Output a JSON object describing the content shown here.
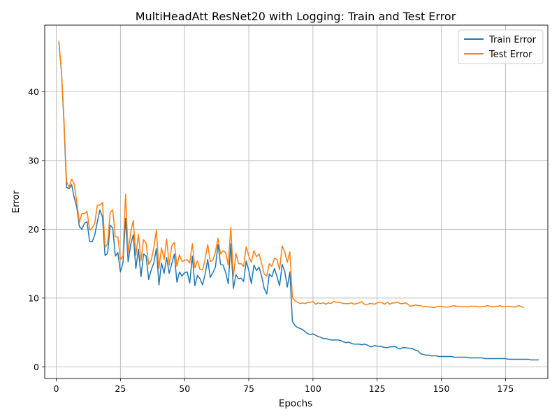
{
  "chart_data": {
    "type": "line",
    "title": "MultiHeadAtt ResNet20 with Logging: Train and Test Error",
    "xlabel": "Epochs",
    "ylabel": "Error",
    "xlim": [
      -4.5,
      191.5
    ],
    "ylim": [
      -1.7,
      49.7
    ],
    "xticks": [
      0,
      25,
      50,
      75,
      100,
      125,
      150,
      175
    ],
    "yticks": [
      0,
      10,
      20,
      30,
      40
    ],
    "grid": true,
    "legend_position": "top-right",
    "colors": {
      "train": "#1f77b4",
      "test": "#ff7f0e"
    },
    "series": [
      {
        "name": "Train Error",
        "color": "#1f77b4",
        "x_start": 1,
        "values": [
          47.3,
          43.0,
          35.5,
          26.1,
          25.9,
          26.5,
          24.6,
          23.2,
          20.4,
          20.0,
          20.9,
          21.1,
          18.2,
          18.2,
          19.2,
          21.1,
          22.8,
          21.8,
          16.2,
          16.5,
          20.6,
          20.2,
          16.1,
          16.6,
          13.8,
          15.2,
          21.6,
          15.3,
          17.8,
          19.2,
          14.3,
          17.1,
          13.1,
          16.4,
          16.1,
          12.7,
          14.1,
          15.1,
          17.2,
          11.9,
          15.1,
          13.6,
          15.9,
          13.6,
          15.0,
          16.4,
          12.3,
          13.8,
          13.2,
          13.7,
          13.8,
          12.2,
          16.1,
          11.8,
          13.3,
          12.8,
          11.9,
          13.5,
          15.6,
          13.0,
          13.7,
          14.5,
          17.8,
          14.9,
          14.8,
          13.7,
          12.1,
          17.9,
          11.4,
          13.4,
          12.8,
          12.9,
          12.4,
          15.4,
          14.0,
          12.1,
          14.8,
          14.0,
          14.5,
          13.2,
          11.4,
          10.6,
          13.5,
          13.1,
          14.3,
          13.1,
          11.8,
          14.9,
          13.9,
          11.6,
          13.8,
          6.6,
          6.0,
          5.7,
          5.6,
          5.4,
          5.1,
          4.8,
          4.7,
          4.8,
          4.6,
          4.4,
          4.3,
          4.1,
          4.1,
          4.0,
          3.9,
          3.9,
          3.9,
          3.9,
          3.8,
          3.6,
          3.5,
          3.6,
          3.4,
          3.3,
          3.3,
          3.3,
          3.2,
          3.3,
          3.2,
          3.0,
          2.9,
          3.1,
          3.0,
          3.0,
          2.9,
          2.8,
          2.8,
          2.9,
          2.9,
          3.0,
          2.7,
          2.6,
          2.8,
          2.8,
          2.7,
          2.7,
          2.6,
          2.4,
          2.3,
          1.9,
          1.8,
          1.7,
          1.7,
          1.6,
          1.6,
          1.6,
          1.5,
          1.5,
          1.5,
          1.5,
          1.5,
          1.5,
          1.4,
          1.4,
          1.4,
          1.4,
          1.4,
          1.4,
          1.3,
          1.3,
          1.3,
          1.3,
          1.3,
          1.3,
          1.2,
          1.2,
          1.2,
          1.2,
          1.2,
          1.2,
          1.2,
          1.2,
          1.2,
          1.1,
          1.1,
          1.1,
          1.1,
          1.1,
          1.1,
          1.1,
          1.1,
          1.1,
          1.0,
          1.0,
          1.0,
          1.0
        ]
      },
      {
        "name": "Test Error",
        "color": "#ff7f0e",
        "x_start": 1,
        "values": [
          47.4,
          43.1,
          36.0,
          27.0,
          26.1,
          27.3,
          26.6,
          23.9,
          21.0,
          22.3,
          22.3,
          22.6,
          19.9,
          20.2,
          20.9,
          23.5,
          23.5,
          23.9,
          17.4,
          17.9,
          22.5,
          22.8,
          18.9,
          18.9,
          15.6,
          16.1,
          25.1,
          16.6,
          19.5,
          21.3,
          16.2,
          19.3,
          15.4,
          18.5,
          18.0,
          14.9,
          15.5,
          17.3,
          19.9,
          14.3,
          17.3,
          15.6,
          18.6,
          14.8,
          17.6,
          18.1,
          14.6,
          16.3,
          15.3,
          15.5,
          15.6,
          15.1,
          17.9,
          14.4,
          15.4,
          14.2,
          14.1,
          15.7,
          17.8,
          15.3,
          15.5,
          16.7,
          18.7,
          16.4,
          16.9,
          16.6,
          14.8,
          20.3,
          13.1,
          16.5,
          15.0,
          15.0,
          14.6,
          17.5,
          16.1,
          15.2,
          16.9,
          16.0,
          16.4,
          15.1,
          13.5,
          13.2,
          15.0,
          14.6,
          15.8,
          15.6,
          14.1,
          17.6,
          16.7,
          15.2,
          16.7,
          10.1,
          9.6,
          9.4,
          9.2,
          9.3,
          9.2,
          9.4,
          9.4,
          9.5,
          9.1,
          9.3,
          9.2,
          9.3,
          9.1,
          9.3,
          9.2,
          9.5,
          9.4,
          9.4,
          9.3,
          9.2,
          9.2,
          9.2,
          9.3,
          9.1,
          9.2,
          9.3,
          9.5,
          9.1,
          9.0,
          9.2,
          9.2,
          9.1,
          9.3,
          9.4,
          9.3,
          9.1,
          9.4,
          9.1,
          9.3,
          9.3,
          9.4,
          9.2,
          9.2,
          9.3,
          9.1,
          8.8,
          8.9,
          9.0,
          8.9,
          8.9,
          8.7,
          8.8,
          8.7,
          8.7,
          8.6,
          8.7,
          8.8,
          8.8,
          8.7,
          8.7,
          8.7,
          8.8,
          8.9,
          8.8,
          8.8,
          8.7,
          8.8,
          8.7,
          8.8,
          8.8,
          8.8,
          8.8,
          8.7,
          8.8,
          8.8,
          8.9,
          8.8,
          8.7,
          8.8,
          8.8,
          8.9,
          8.7,
          8.8,
          8.8,
          8.8,
          8.7,
          8.7,
          8.9,
          8.8,
          8.6
        ]
      }
    ]
  }
}
